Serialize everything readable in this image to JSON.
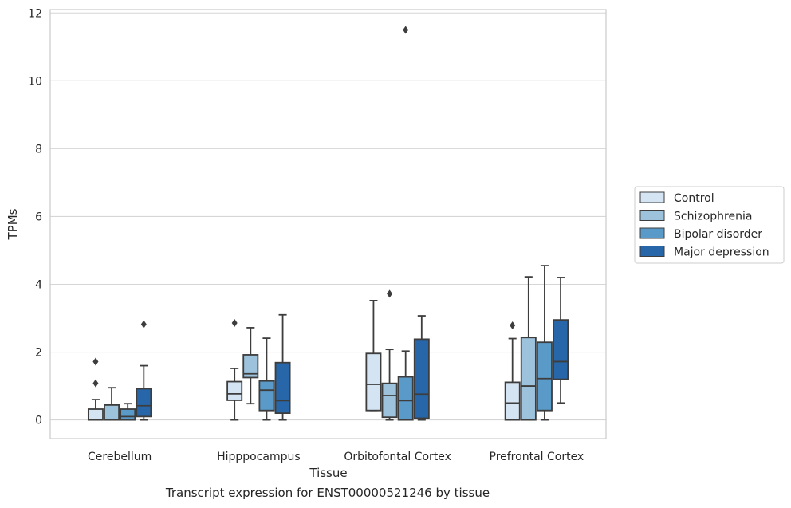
{
  "caption": "Transcript expression for ENST00000521246 by tissue",
  "chart_data": {
    "type": "boxplot",
    "xlabel": "Tissue",
    "ylabel": "TPMs",
    "ylim": [
      -0.55,
      12.1
    ],
    "yticks": [
      0,
      2,
      4,
      6,
      8,
      10,
      12
    ],
    "grid": "horizontal",
    "legend_position": "right",
    "categories": [
      "Cerebellum",
      "Hipppocampus",
      "Orbitofontal Cortex",
      "Prefrontal Cortex"
    ],
    "series": [
      {
        "name": "Control",
        "color": "#d4e4f2",
        "boxes": [
          {
            "whislo": 0,
            "q1": 0,
            "med": 0,
            "q3": 0.32,
            "whishi": 0.6,
            "fliers": [
              1.08,
              1.72
            ]
          },
          {
            "whislo": 0,
            "q1": 0.58,
            "med": 0.77,
            "q3": 1.13,
            "whishi": 1.52,
            "fliers": [
              2.86
            ]
          },
          {
            "whislo": 0.28,
            "q1": 0.28,
            "med": 1.05,
            "q3": 1.96,
            "whishi": 3.52,
            "fliers": []
          },
          {
            "whislo": 0,
            "q1": 0,
            "med": 0.5,
            "q3": 1.11,
            "whishi": 2.4,
            "fliers": [
              2.79
            ]
          }
        ]
      },
      {
        "name": "Schizophrenia",
        "color": "#9dc2dc",
        "boxes": [
          {
            "whislo": 0,
            "q1": 0,
            "med": 0,
            "q3": 0.44,
            "whishi": 0.95,
            "fliers": []
          },
          {
            "whislo": 0.48,
            "q1": 1.25,
            "med": 1.36,
            "q3": 1.92,
            "whishi": 2.72,
            "fliers": []
          },
          {
            "whislo": 0,
            "q1": 0.08,
            "med": 0.72,
            "q3": 1.08,
            "whishi": 2.08,
            "fliers": [
              3.72
            ]
          },
          {
            "whislo": 0,
            "q1": 0,
            "med": 1.0,
            "q3": 2.43,
            "whishi": 4.22,
            "fliers": []
          }
        ]
      },
      {
        "name": "Bipolar disorder",
        "color": "#5a9ac9",
        "boxes": [
          {
            "whislo": 0,
            "q1": 0,
            "med": 0.1,
            "q3": 0.32,
            "whishi": 0.48,
            "fliers": []
          },
          {
            "whislo": 0,
            "q1": 0.28,
            "med": 0.88,
            "q3": 1.15,
            "whishi": 2.41,
            "fliers": []
          },
          {
            "whislo": 0,
            "q1": 0,
            "med": 0.57,
            "q3": 1.27,
            "whishi": 2.03,
            "fliers": [
              11.5
            ]
          },
          {
            "whislo": 0,
            "q1": 0.28,
            "med": 1.22,
            "q3": 2.29,
            "whishi": 4.55,
            "fliers": []
          }
        ]
      },
      {
        "name": "Major depression",
        "color": "#2767a9",
        "boxes": [
          {
            "whislo": 0,
            "q1": 0.1,
            "med": 0.42,
            "q3": 0.92,
            "whishi": 1.6,
            "fliers": [
              2.82
            ]
          },
          {
            "whislo": 0,
            "q1": 0.2,
            "med": 0.57,
            "q3": 1.69,
            "whishi": 3.1,
            "fliers": []
          },
          {
            "whislo": 0,
            "q1": 0.05,
            "med": 0.76,
            "q3": 2.38,
            "whishi": 3.07,
            "fliers": []
          },
          {
            "whislo": 0.5,
            "q1": 1.2,
            "med": 1.72,
            "q3": 2.95,
            "whishi": 4.2,
            "fliers": []
          }
        ]
      }
    ]
  }
}
